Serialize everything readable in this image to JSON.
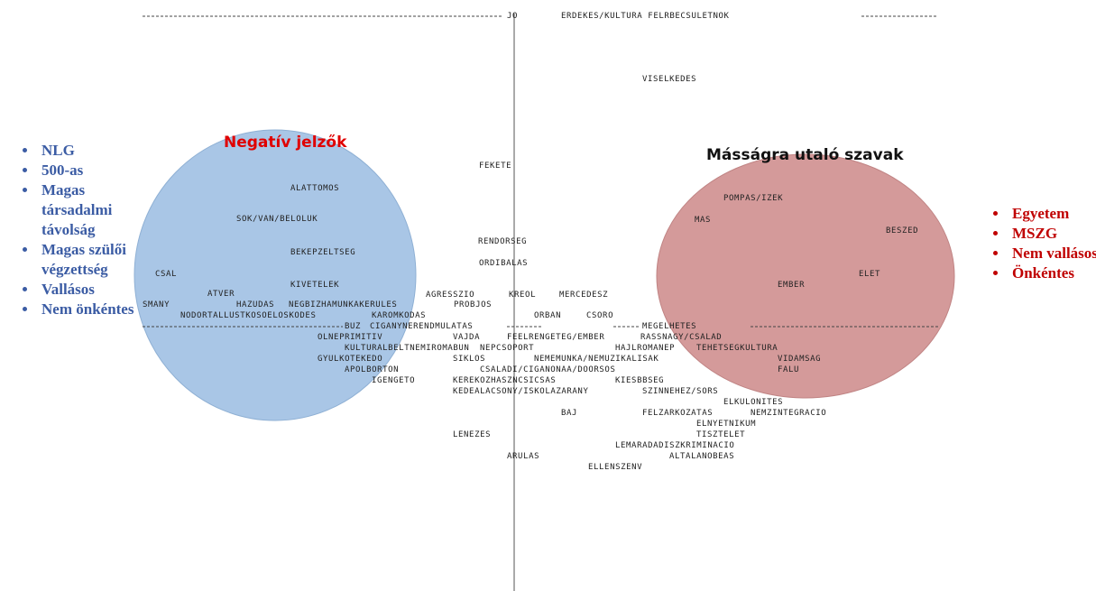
{
  "axis_top": {
    "left_label": "JO",
    "right_label": "ERDEKES/KULTURA FELRBECSULETNOK"
  },
  "circles": [
    {
      "title": "Negatív jelzők"
    },
    {
      "title": "Másságra utaló szavak"
    }
  ],
  "words": [
    "VISELKEDES",
    "FEKETE",
    "ALATTOMOS",
    "SOK/VAN/BELOLUK",
    "RENDORSEG",
    "BEKEPZELTSEG",
    "ORDIBALAS",
    "CSAL",
    "KIVETELEK",
    "ATVER",
    "AGRESSZIO",
    "KREOL",
    "MERCEDESZ",
    "SMANY",
    "HAZUDAS",
    "NEGBIZHAMUNKAKERULES",
    "PROBJOS",
    "NODORTALLUSTKOSOELOSKODES",
    "KAROMKODAS",
    "ORBAN",
    "CSORO",
    "BUZ",
    "CIGANYNERENDMULATAS",
    "MEGELHETES",
    "OLNEPRIMITIV",
    "VAJDA",
    "FEELRENGETEG/EMBER",
    "RASSNAGY/CSALAD",
    "KULTURALBELTNEMIROMABUN",
    "NEPCSOPORT",
    "HAJLROMANEP",
    "TEHETSEGKULTURA",
    "GYULKOTEKEDO",
    "SIKLOS",
    "NEMEMUNKA/NEMUZIKALISAK",
    "VIDAMSAG",
    "APOLBORTON",
    "CSALADI/CIGANONAA/DOORSOS",
    "FALU",
    "IGENGETO",
    "KEREKOZHASZNCSICSAS",
    "KIESBBSEG",
    "KEDEALACSONY/ISKOLAZARANY",
    "SZINNEHEZ/SORS",
    "ELKULONITES",
    "BAJ",
    "FELZARKOZATAS",
    "NEMZINTEGRACIO",
    "ELNYETNIKUM",
    "LENEZES",
    "TISZTELET",
    "LEMARADADISZKRIMINACIO",
    "ARULAS",
    "ALTALANOBEAS",
    "ELLENSZENV",
    "POMPAS/IZEK",
    "MAS",
    "BESZED",
    "EMBER",
    "ELET"
  ],
  "left_list": [
    "NLG",
    "500-as",
    "Magas társadalmi távolság",
    "Magas szülői végzettség",
    "Vallásos",
    "Nem önkéntes"
  ],
  "right_list": [
    "Egyetem",
    "MSZG",
    "Nem vallásos",
    "Önkéntes"
  ]
}
